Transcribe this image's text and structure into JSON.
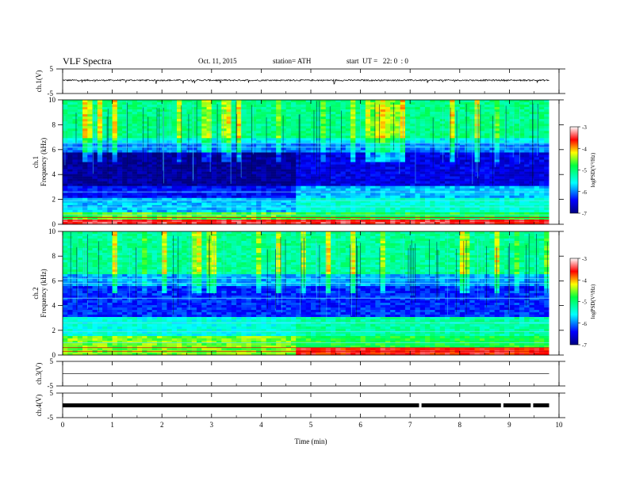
{
  "header": {
    "title": "VLF Spectra",
    "date": "Oct. 11, 2015",
    "station": "station= ATH",
    "start": "start  UT =   22: 0  : 0"
  },
  "chart_data": [
    {
      "type": "line",
      "panel": "ch1",
      "ylabel": "ch.1(V)",
      "ylim": [
        -5,
        5
      ],
      "yticks": [
        "5",
        "-5"
      ],
      "xlim": [
        0,
        10
      ],
      "data_end": 9.8,
      "approx_value": 0.4,
      "noise_amplitude": 0.6
    },
    {
      "type": "heatmap",
      "panel": "ch1_spec",
      "ylabel": "Frequency (kHz)",
      "panel_label": "ch.1",
      "ylim": [
        0,
        10
      ],
      "yticks": [
        "0",
        "2",
        "4",
        "6",
        "8",
        "10"
      ],
      "xlim": [
        0,
        10
      ],
      "transition_min": 4.7,
      "colorbar": {
        "label": "logPSD(V²/Hz)",
        "range": [
          -7,
          -3
        ],
        "ticks": [
          "-3",
          "-4",
          "-5",
          "-6",
          "-7"
        ]
      }
    },
    {
      "type": "heatmap",
      "panel": "ch2_spec",
      "ylabel": "Frequency (kHz)",
      "panel_label": "ch.2",
      "ylim": [
        0,
        10
      ],
      "yticks": [
        "0",
        "2",
        "4",
        "6",
        "8",
        "10"
      ],
      "xlim": [
        0,
        10
      ],
      "transition_min": 4.7,
      "colorbar": {
        "label": "logPSD(V²/Hz)",
        "range": [
          -7,
          -3
        ],
        "ticks": [
          "-3",
          "-4",
          "-5",
          "-6",
          "-7"
        ]
      }
    },
    {
      "type": "line",
      "panel": "ch3",
      "ylabel": "ch.3(V)",
      "ylim": [
        -5,
        5
      ],
      "yticks": [
        "5",
        "-5"
      ],
      "xlim": [
        0,
        10
      ],
      "approx_value": 0
    },
    {
      "type": "line",
      "panel": "ch4",
      "ylabel": "ch.4(V)",
      "ylim": [
        -5,
        5
      ],
      "yticks": [
        "5",
        "-5"
      ],
      "xlim": [
        0,
        10
      ],
      "approx_value": 0,
      "gaps_min": [
        7.2,
        8.85,
        9.45
      ]
    }
  ],
  "xaxis": {
    "label": "Time  (min)",
    "ticks": [
      "0",
      "1",
      "2",
      "3",
      "4",
      "5",
      "6",
      "7",
      "8",
      "9",
      "10"
    ]
  }
}
